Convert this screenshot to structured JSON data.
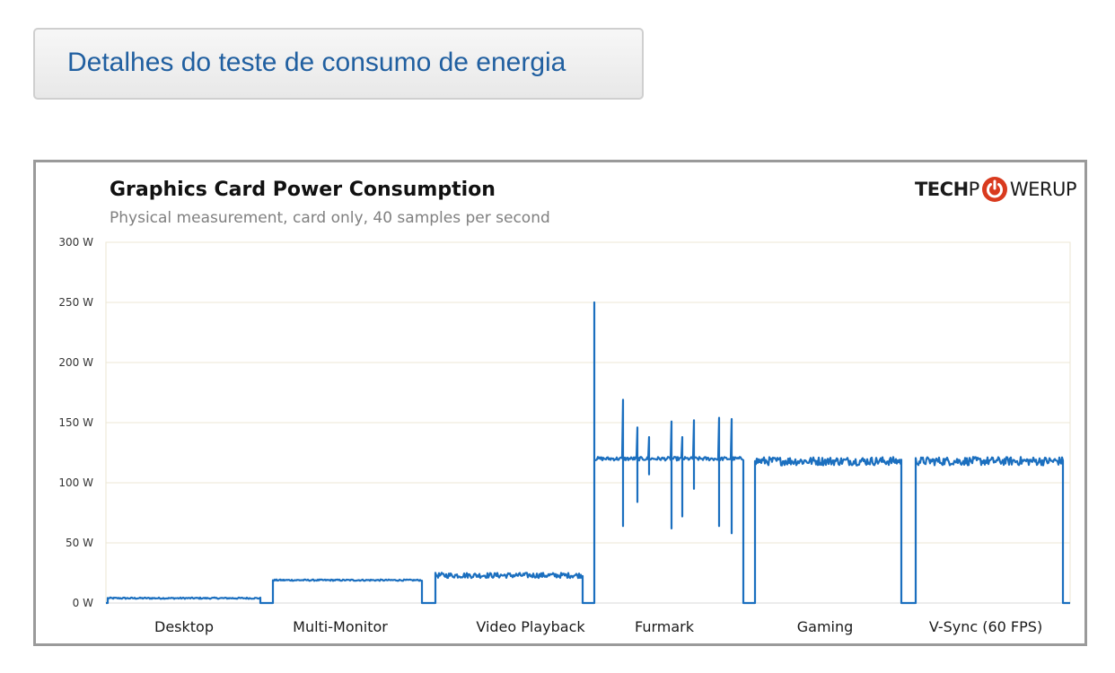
{
  "header": {
    "collapse_label": "Detalhes do teste de consumo de energia"
  },
  "logo": {
    "tech": "TECH",
    "p": "P",
    "power_icon": "power-icon",
    "rest": "WERUP",
    "accent_color": "#d93a1e"
  },
  "chart_data": {
    "type": "line",
    "title": "Graphics  Card Power Consumption",
    "subtitle": "Physical measurement, card only, 40 samples per second",
    "xlabel": "",
    "ylabel": "",
    "ylim": [
      0,
      300
    ],
    "yticks": [
      0,
      50,
      100,
      150,
      200,
      250,
      300
    ],
    "ytick_labels": [
      "0 W",
      "50 W",
      "100 W",
      "150 W",
      "200 W",
      "250 W",
      "300 W"
    ],
    "grid": true,
    "line_color": "#1b6fbf",
    "categories": [
      "Desktop",
      "Multi-Monitor",
      "Video Playback",
      "Furmark",
      "Gaming",
      "V-Sync (60 FPS)"
    ],
    "segments": [
      {
        "name": "Desktop",
        "level": 4,
        "noise": 0.6,
        "spikes": []
      },
      {
        "name": "Multi-Monitor",
        "level": 19,
        "noise": 0.6,
        "spikes": []
      },
      {
        "name": "Video Playback",
        "level": 23,
        "noise": 2.2,
        "spikes": []
      },
      {
        "name": "Furmark",
        "level": 120,
        "noise": 1.5,
        "spikes": [
          {
            "pos": 0.0,
            "high": 250,
            "low": 120
          },
          {
            "pos": 0.19,
            "high": 169,
            "low": 64
          },
          {
            "pos": 0.29,
            "high": 146,
            "low": 84
          },
          {
            "pos": 0.37,
            "high": 138,
            "low": 107
          },
          {
            "pos": 0.52,
            "high": 151,
            "low": 62
          },
          {
            "pos": 0.59,
            "high": 138,
            "low": 72
          },
          {
            "pos": 0.67,
            "high": 152,
            "low": 95
          },
          {
            "pos": 0.84,
            "high": 154,
            "low": 64
          },
          {
            "pos": 0.92,
            "high": 153,
            "low": 58
          }
        ]
      },
      {
        "name": "Gaming",
        "level": 118,
        "noise": 3.5,
        "spikes": []
      },
      {
        "name": "V-Sync (60 FPS)",
        "level": 118,
        "noise": 3.5,
        "spikes": []
      }
    ]
  }
}
